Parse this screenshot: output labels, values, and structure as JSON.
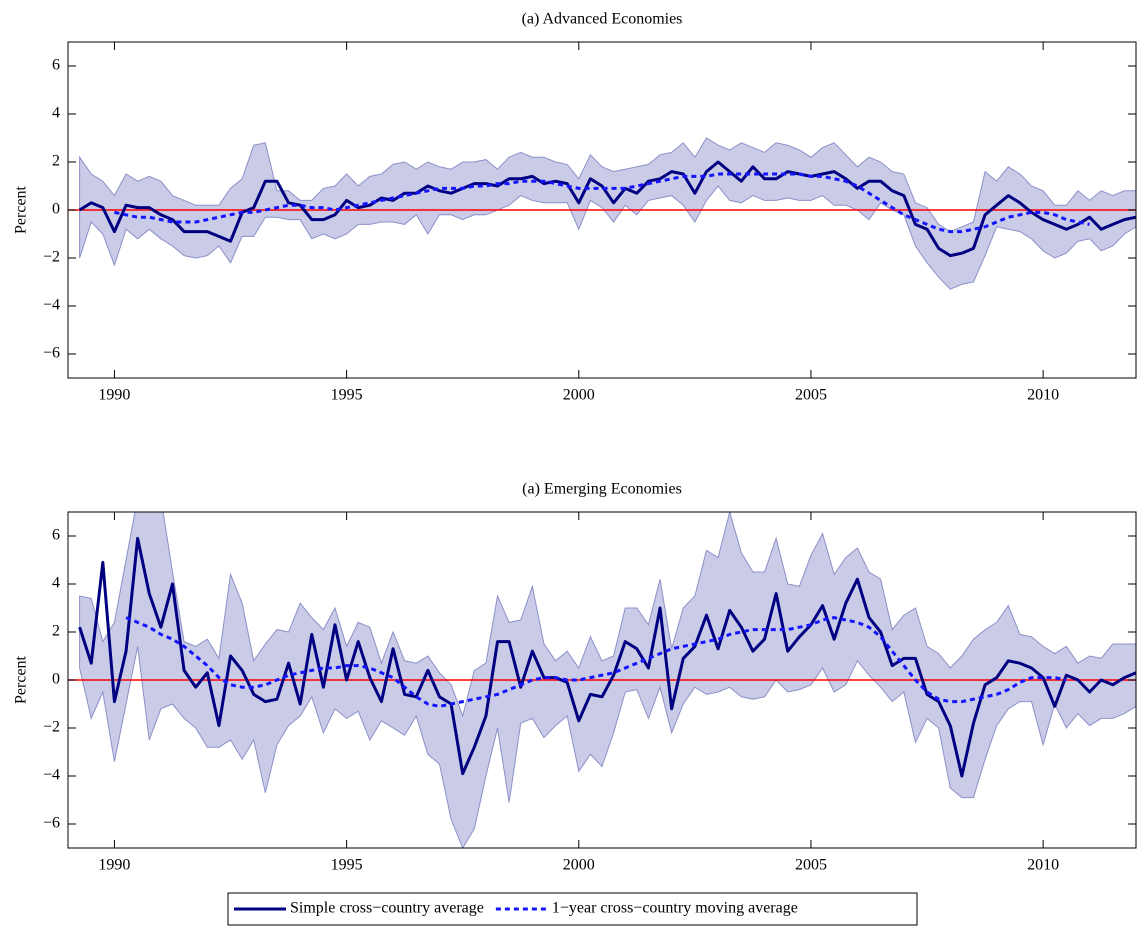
{
  "chart_data": [
    {
      "type": "line",
      "title": "(a) Advanced Economies",
      "y_label": "Percent",
      "x": [
        1989.25,
        1989.5,
        1989.75,
        1990,
        1990.25,
        1990.5,
        1990.75,
        1991,
        1991.25,
        1991.5,
        1991.75,
        1992,
        1992.25,
        1992.5,
        1992.75,
        1993,
        1993.25,
        1993.5,
        1993.75,
        1994,
        1994.25,
        1994.5,
        1994.75,
        1995,
        1995.25,
        1995.5,
        1995.75,
        1996,
        1996.25,
        1996.5,
        1996.75,
        1997,
        1997.25,
        1997.5,
        1997.75,
        1998,
        1998.25,
        1998.5,
        1998.75,
        1999,
        1999.25,
        1999.5,
        1999.75,
        2000,
        2000.25,
        2000.5,
        2000.75,
        2001,
        2001.25,
        2001.5,
        2001.75,
        2002,
        2002.25,
        2002.5,
        2002.75,
        2003,
        2003.25,
        2003.5,
        2003.75,
        2004,
        2004.25,
        2004.5,
        2004.75,
        2005,
        2005.25,
        2005.5,
        2005.75,
        2006,
        2006.25,
        2006.5,
        2006.75,
        2007,
        2007.25,
        2007.5,
        2007.75,
        2008,
        2008.25,
        2008.5,
        2008.75,
        2009,
        2009.25,
        2009.5,
        2009.75,
        2010,
        2010.25,
        2010.5,
        2010.75,
        2011,
        2011.25,
        2011.5,
        2011.75,
        2012
      ],
      "series": [
        {
          "name": "Simple cross−country average",
          "color": "#000080",
          "style": "solid",
          "values": [
            0,
            0.3,
            0.1,
            -0.9,
            0.2,
            0.1,
            0.1,
            -0.2,
            -0.4,
            -0.9,
            -0.9,
            -0.9,
            -1.1,
            -1.3,
            -0.1,
            0.1,
            1.2,
            1.2,
            0.3,
            0.2,
            -0.4,
            -0.4,
            -0.2,
            0.4,
            0.1,
            0.2,
            0.5,
            0.4,
            0.7,
            0.7,
            1.0,
            0.8,
            0.7,
            0.9,
            1.1,
            1.1,
            1.0,
            1.3,
            1.3,
            1.4,
            1.1,
            1.2,
            1.1,
            0.3,
            1.3,
            1.0,
            0.3,
            0.9,
            0.7,
            1.2,
            1.3,
            1.6,
            1.5,
            0.7,
            1.6,
            2.0,
            1.6,
            1.2,
            1.8,
            1.3,
            1.3,
            1.6,
            1.5,
            1.4,
            1.5,
            1.6,
            1.3,
            0.9,
            1.2,
            1.2,
            0.8,
            0.6,
            -0.6,
            -0.8,
            -1.6,
            -1.9,
            -1.8,
            -1.6,
            -0.2,
            0.2,
            0.6,
            0.3,
            -0.1,
            -0.4,
            -0.6,
            -0.8,
            -0.6,
            -0.3,
            -0.8,
            -0.6,
            -0.4,
            -0.3
          ]
        },
        {
          "name": "1−year cross−country moving average",
          "color": "#1414ff",
          "style": "dotted",
          "values": [
            null,
            null,
            null,
            -0.1,
            -0.2,
            -0.3,
            -0.3,
            -0.4,
            -0.5,
            -0.5,
            -0.5,
            -0.4,
            -0.3,
            -0.2,
            -0.1,
            -0.1,
            0.0,
            0.1,
            0.2,
            0.2,
            0.1,
            0.1,
            0.0,
            0.1,
            0.2,
            0.3,
            0.4,
            0.5,
            0.6,
            0.7,
            0.8,
            0.9,
            0.9,
            0.9,
            1.0,
            1.0,
            1.1,
            1.1,
            1.2,
            1.2,
            1.2,
            1.1,
            1.0,
            0.9,
            0.9,
            0.9,
            0.9,
            0.9,
            1.0,
            1.1,
            1.2,
            1.3,
            1.4,
            1.4,
            1.4,
            1.5,
            1.5,
            1.5,
            1.5,
            1.5,
            1.5,
            1.5,
            1.5,
            1.4,
            1.4,
            1.3,
            1.2,
            1.0,
            0.7,
            0.4,
            0.1,
            -0.2,
            -0.4,
            -0.6,
            -0.8,
            -0.9,
            -0.9,
            -0.8,
            -0.7,
            -0.5,
            -0.3,
            -0.2,
            -0.1,
            -0.1,
            -0.2,
            -0.4,
            -0.5,
            -0.6,
            null,
            null,
            null,
            null
          ]
        }
      ],
      "band": {
        "fill": "#c9cbe7",
        "stroke": "#8c90c8",
        "upper": [
          2.2,
          1.5,
          1.2,
          0.6,
          1.5,
          1.2,
          1.4,
          1.2,
          0.6,
          0.4,
          0.2,
          0.2,
          0.2,
          0.9,
          1.3,
          2.7,
          2.8,
          0.8,
          0.8,
          0.4,
          0.4,
          0.9,
          1.0,
          1.5,
          1.0,
          1.4,
          1.5,
          1.9,
          2.0,
          1.7,
          2.0,
          1.8,
          1.7,
          2.0,
          2.0,
          2.1,
          1.7,
          2.2,
          2.4,
          2.2,
          2.2,
          2.0,
          1.9,
          1.3,
          2.3,
          1.8,
          1.6,
          1.7,
          1.8,
          1.9,
          2.3,
          2.4,
          2.8,
          2.2,
          3.0,
          2.7,
          2.5,
          2.8,
          2.6,
          2.4,
          2.8,
          2.7,
          2.5,
          2.2,
          2.6,
          2.8,
          2.3,
          1.8,
          2.2,
          2.0,
          1.6,
          1.5,
          0.3,
          0.1,
          -0.6,
          -0.9,
          -0.7,
          -0.5,
          1.6,
          1.2,
          1.8,
          1.5,
          1.0,
          0.8,
          0.2,
          0.2,
          0.8,
          0.4,
          0.8,
          0.6,
          0.8,
          0.8
        ],
        "lower": [
          -2.0,
          -0.5,
          -1.0,
          -2.3,
          -0.8,
          -1.2,
          -0.8,
          -1.2,
          -1.5,
          -1.9,
          -2.0,
          -1.9,
          -1.5,
          -2.2,
          -1.1,
          -1.1,
          -0.3,
          -0.3,
          -0.4,
          -0.4,
          -1.2,
          -1.0,
          -1.2,
          -1.0,
          -0.6,
          -0.6,
          -0.5,
          -0.5,
          -0.6,
          -0.2,
          -1.0,
          -0.2,
          -0.2,
          -0.4,
          -0.2,
          -0.2,
          0.0,
          0.2,
          0.6,
          0.4,
          0.3,
          0.3,
          0.3,
          -0.8,
          0.4,
          0.1,
          -0.5,
          0.2,
          -0.2,
          0.4,
          0.5,
          0.6,
          0.2,
          -0.5,
          0.4,
          1.0,
          0.4,
          0.3,
          0.6,
          0.4,
          0.4,
          0.5,
          0.4,
          0.4,
          0.6,
          0.2,
          0.2,
          0.0,
          -0.4,
          0.3,
          0.0,
          -0.2,
          -1.5,
          -2.2,
          -2.8,
          -3.3,
          -3.1,
          -3.0,
          -1.9,
          -0.7,
          -0.8,
          -0.9,
          -1.2,
          -1.7,
          -2.0,
          -1.8,
          -1.3,
          -1.2,
          -1.7,
          -1.5,
          -1.0,
          -0.7
        ]
      },
      "hline": {
        "value": 0,
        "color": "#ff0000"
      },
      "xlim": [
        1989,
        2012
      ],
      "ylim": [
        -7,
        7
      ],
      "xticks": [
        1990,
        1995,
        2000,
        2005,
        2010
      ],
      "yticks": [
        {
          "value": -6,
          "label": "−6"
        },
        {
          "value": -4,
          "label": "−4"
        },
        {
          "value": -2,
          "label": "−2"
        },
        0,
        2,
        4,
        6
      ]
    },
    {
      "type": "line",
      "title": "(a) Emerging Economies",
      "y_label": "Percent",
      "x": [
        1989.25,
        1989.5,
        1989.75,
        1990,
        1990.25,
        1990.5,
        1990.75,
        1991,
        1991.25,
        1991.5,
        1991.75,
        1992,
        1992.25,
        1992.5,
        1992.75,
        1993,
        1993.25,
        1993.5,
        1993.75,
        1994,
        1994.25,
        1994.5,
        1994.75,
        1995,
        1995.25,
        1995.5,
        1995.75,
        1996,
        1996.25,
        1996.5,
        1996.75,
        1997,
        1997.25,
        1997.5,
        1997.75,
        1998,
        1998.25,
        1998.5,
        1998.75,
        1999,
        1999.25,
        1999.5,
        1999.75,
        2000,
        2000.25,
        2000.5,
        2000.75,
        2001,
        2001.25,
        2001.5,
        2001.75,
        2002,
        2002.25,
        2002.5,
        2002.75,
        2003,
        2003.25,
        2003.5,
        2003.75,
        2004,
        2004.25,
        2004.5,
        2004.75,
        2005,
        2005.25,
        2005.5,
        2005.75,
        2006,
        2006.25,
        2006.5,
        2006.75,
        2007,
        2007.25,
        2007.5,
        2007.75,
        2008,
        2008.25,
        2008.5,
        2008.75,
        2009,
        2009.25,
        2009.5,
        2009.75,
        2010,
        2010.25,
        2010.5,
        2010.75,
        2011,
        2011.25,
        2011.5,
        2011.75,
        2012
      ],
      "series": [
        {
          "color": "#000080",
          "style": "solid",
          "values": [
            2.2,
            0.7,
            4.9,
            -0.9,
            1.2,
            5.9,
            3.6,
            2.2,
            4.0,
            0.4,
            -0.3,
            0.3,
            -1.9,
            1.0,
            0.4,
            -0.6,
            -0.9,
            -0.8,
            0.7,
            -1.0,
            1.9,
            -0.3,
            2.3,
            0.0,
            1.6,
            0.1,
            -0.9,
            1.3,
            -0.6,
            -0.7,
            0.4,
            -0.7,
            -1.0,
            -3.9,
            -2.8,
            -1.5,
            1.6,
            1.6,
            -0.3,
            1.2,
            0.1,
            0.1,
            -0.1,
            -1.7,
            -0.6,
            -0.7,
            0.2,
            1.6,
            1.3,
            0.5,
            3.0,
            -1.2,
            0.9,
            1.4,
            2.7,
            1.3,
            2.9,
            2.2,
            1.2,
            1.7,
            3.6,
            1.2,
            1.8,
            2.3,
            3.1,
            1.7,
            3.2,
            4.2,
            2.6,
            2.0,
            0.6,
            0.9,
            0.9,
            -0.6,
            -0.9,
            -1.9,
            -4.0,
            -1.8,
            -0.2,
            0.1,
            0.8,
            0.7,
            0.5,
            0.1,
            -1.1,
            0.2,
            0.0,
            -0.5,
            0.0,
            -0.2,
            0.1,
            0.3
          ]
        },
        {
          "color": "#1414ff",
          "style": "dotted",
          "values": [
            null,
            null,
            null,
            null,
            2.6,
            2.4,
            2.2,
            1.9,
            1.7,
            1.4,
            1.0,
            0.6,
            0.1,
            -0.2,
            -0.3,
            -0.3,
            -0.2,
            0.0,
            0.2,
            0.3,
            0.4,
            0.5,
            0.5,
            0.6,
            0.6,
            0.5,
            0.3,
            0.1,
            -0.3,
            -0.7,
            -1.0,
            -1.1,
            -1.0,
            -0.9,
            -0.8,
            -0.7,
            -0.6,
            -0.4,
            -0.2,
            0.0,
            0.1,
            0.1,
            0.0,
            0.0,
            0.1,
            0.2,
            0.3,
            0.5,
            0.7,
            0.9,
            1.1,
            1.3,
            1.4,
            1.5,
            1.6,
            1.7,
            1.9,
            2.0,
            2.1,
            2.1,
            2.1,
            2.1,
            2.2,
            2.3,
            2.5,
            2.6,
            2.5,
            2.4,
            2.2,
            1.8,
            1.2,
            0.6,
            0.0,
            -0.5,
            -0.8,
            -0.9,
            -0.9,
            -0.8,
            -0.7,
            -0.6,
            -0.4,
            -0.1,
            0.1,
            0.1,
            0.1,
            0.0,
            null,
            null,
            null,
            null,
            null,
            null
          ]
        }
      ],
      "band": {
        "fill": "#c9cbe7",
        "stroke": "#8c90c8",
        "upper": [
          3.5,
          3.4,
          1.6,
          2.4,
          5.0,
          7.6,
          7.0,
          7.6,
          4.5,
          1.6,
          1.4,
          1.7,
          0.9,
          4.4,
          3.2,
          0.8,
          1.5,
          2.1,
          2.0,
          3.2,
          2.6,
          2.1,
          3.0,
          1.4,
          2.4,
          2.2,
          0.7,
          2.0,
          0.8,
          0.7,
          1.0,
          0.3,
          -0.2,
          -1.5,
          0.4,
          0.7,
          3.5,
          2.4,
          2.5,
          3.9,
          1.5,
          0.8,
          1.2,
          0.5,
          1.8,
          0.8,
          1.0,
          3.0,
          3.0,
          2.3,
          4.2,
          1.3,
          3.0,
          3.5,
          5.4,
          5.1,
          7.0,
          5.3,
          4.5,
          4.5,
          5.9,
          4.0,
          3.9,
          5.2,
          6.1,
          4.4,
          5.1,
          5.5,
          4.5,
          4.2,
          2.1,
          2.7,
          3.0,
          1.4,
          1.1,
          0.5,
          1.0,
          1.7,
          2.1,
          2.4,
          3.1,
          1.9,
          1.8,
          1.4,
          1.1,
          1.4,
          0.7,
          1.0,
          0.9,
          1.5,
          1.5,
          1.5
        ],
        "lower": [
          0.5,
          -1.6,
          -0.5,
          -3.4,
          -1.0,
          1.4,
          -2.5,
          -1.2,
          -1.0,
          -1.6,
          -2.0,
          -2.8,
          -2.8,
          -2.5,
          -3.3,
          -2.5,
          -4.7,
          -2.7,
          -1.9,
          -1.5,
          -0.7,
          -2.2,
          -1.2,
          -1.6,
          -1.3,
          -2.5,
          -1.7,
          -2.0,
          -2.3,
          -1.5,
          -3.1,
          -3.5,
          -5.8,
          -7.0,
          -6.2,
          -4.0,
          -2.0,
          -5.1,
          -1.8,
          -1.6,
          -2.4,
          -1.9,
          -1.5,
          -3.8,
          -3.1,
          -3.6,
          -2.2,
          -0.5,
          -0.4,
          -1.6,
          -0.3,
          -2.2,
          -1.0,
          -0.3,
          -0.6,
          -0.5,
          -0.3,
          -0.7,
          -0.8,
          -0.7,
          0.0,
          -0.5,
          -0.4,
          -0.2,
          0.5,
          -0.5,
          -0.2,
          0.8,
          0.2,
          -0.3,
          -0.9,
          -0.5,
          -2.6,
          -1.6,
          -2.0,
          -4.5,
          -4.9,
          -4.9,
          -3.3,
          -1.9,
          -1.2,
          -0.9,
          -0.9,
          -2.7,
          -1.0,
          -2.0,
          -1.4,
          -1.9,
          -1.6,
          -1.6,
          -1.4,
          -1.1
        ]
      },
      "hline": {
        "value": 0,
        "color": "#ff0000"
      },
      "xlim": [
        1989,
        2012
      ],
      "ylim": [
        -7,
        7
      ],
      "xticks": [
        1990,
        1995,
        2000,
        2005,
        2010
      ],
      "yticks": [
        {
          "value": -6,
          "label": "−6"
        },
        {
          "value": -4,
          "label": "−4"
        },
        {
          "value": -2,
          "label": "−2"
        },
        0,
        2,
        4,
        6
      ]
    }
  ]
}
